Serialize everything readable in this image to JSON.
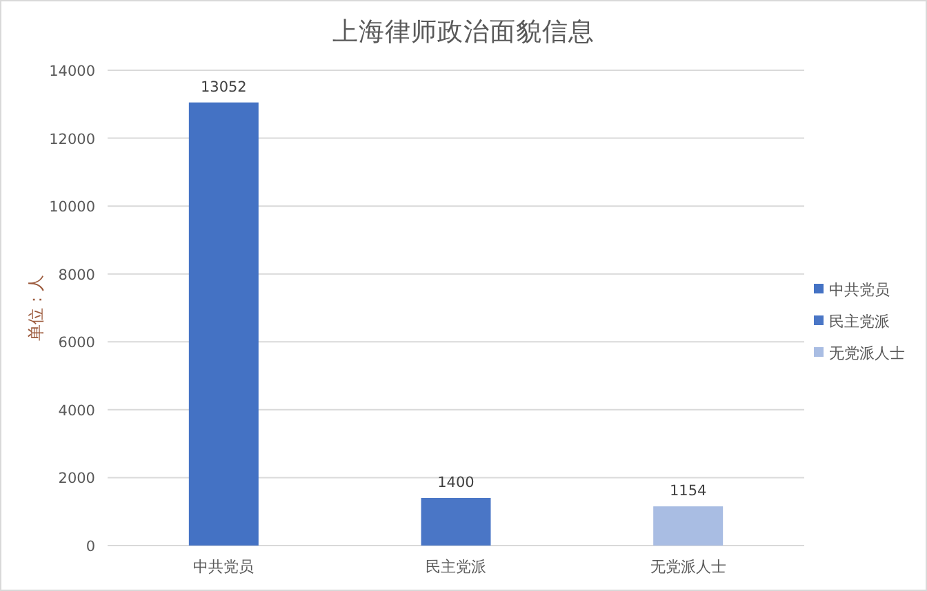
{
  "chart_data": {
    "type": "bar",
    "title": "上海律师政治面貌信息",
    "ylabel": "单位：人",
    "categories": [
      "中共党员",
      "民主党派",
      "无党派人士"
    ],
    "stacked": true,
    "series": [
      {
        "name": "中共党员",
        "color": "#4472c4",
        "values": [
          13052,
          null,
          null
        ]
      },
      {
        "name": "民主党派",
        "color": "#4a76c6",
        "values": [
          null,
          1400,
          null
        ]
      },
      {
        "name": "无党派人士",
        "color": "#a9bde3",
        "values": [
          null,
          null,
          1154
        ]
      }
    ],
    "ylim": [
      0,
      14000
    ],
    "yticks": [
      0,
      2000,
      4000,
      6000,
      8000,
      10000,
      12000,
      14000
    ],
    "grid": "y",
    "legend": "right",
    "data_labels": true
  }
}
